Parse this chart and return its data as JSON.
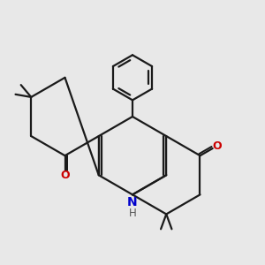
{
  "bg_color": "#e8e8e8",
  "bond_color": "#1a1a1a",
  "oxygen_color": "#cc0000",
  "nitrogen_color": "#0000cc",
  "line_width": 1.6,
  "figsize": [
    3.0,
    3.0
  ],
  "dpi": 100,
  "xlim": [
    -4.5,
    4.5
  ],
  "ylim": [
    -4.0,
    5.0
  ]
}
